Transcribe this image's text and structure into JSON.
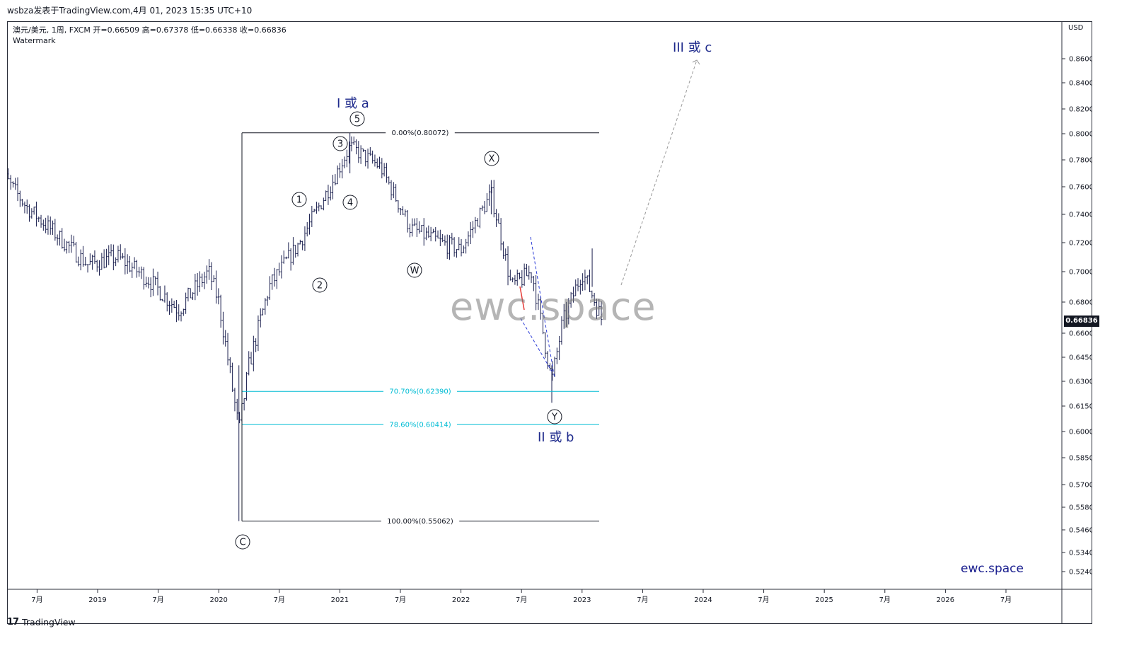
{
  "header": {
    "caption": "wsbza发表于TradingView.com,4月 01, 2023 15:35 UTC+10",
    "symbol_line": "澳元/美元, 1周, FXCM 开=0.66509 高=0.67378 低=0.66338 收=0.66836",
    "watermark": "Watermark"
  },
  "price_axis": {
    "currency": "USD",
    "ticks": [
      "0.86000",
      "0.84000",
      "0.82000",
      "0.80000",
      "0.78000",
      "0.76000",
      "0.74000",
      "0.72000",
      "0.70000",
      "0.68000",
      "0.66000",
      "0.64500",
      "0.63000",
      "0.61500",
      "0.60000",
      "0.58500",
      "0.57000",
      "0.55800",
      "0.54600",
      "0.53400",
      "0.52400"
    ],
    "last_price": "0.66836"
  },
  "time_axis": {
    "ticks": [
      "7月",
      "2019",
      "7月",
      "2020",
      "7月",
      "2021",
      "7月",
      "2022",
      "7月",
      "2023",
      "7月",
      "2024",
      "7月",
      "2025",
      "7月",
      "2026",
      "7月"
    ]
  },
  "fib_levels": [
    {
      "label": "0.00%(0.80072)",
      "color": "#131722"
    },
    {
      "label": "70.70%(0.62390)",
      "color": "#00bcd4"
    },
    {
      "label": "78.60%(0.60414)",
      "color": "#00bcd4"
    },
    {
      "label": "100.00%(0.55062)",
      "color": "#131722"
    }
  ],
  "wave_labels": {
    "wave_1a": "I 或 a",
    "wave_2b": "II 或 b",
    "wave_3c": "III 或 c",
    "circles": [
      "1",
      "2",
      "3",
      "4",
      "5",
      "W",
      "X",
      "Y",
      "C"
    ]
  },
  "branding": {
    "big_watermark": "ewc.space",
    "corner": "ewc.space",
    "footer": "TradingView",
    "footer_logo": "17"
  },
  "colors": {
    "bars": "#1a1f4e",
    "fib_main": "#131722",
    "fib_cyan": "#00bcd4",
    "wave_text": "#1e2a8c",
    "projection": "#999999",
    "channel": "#2b3bd6",
    "highlight": "#e53935"
  },
  "chart_data": {
    "type": "ohlc",
    "symbol": "澳元/美元",
    "interval": "1周",
    "ylim": [
      0.515,
      0.875
    ],
    "x": [
      "2018-03",
      "2018-06",
      "2018-09",
      "2018-12",
      "2019-03",
      "2019-06",
      "2019-09",
      "2019-12",
      "2020-01",
      "2020-03",
      "2020-04",
      "2020-06",
      "2020-09",
      "2020-12",
      "2021-02",
      "2021-05",
      "2021-08",
      "2021-11",
      "2022-01",
      "2022-04",
      "2022-06",
      "2022-08",
      "2022-10",
      "2022-11",
      "2023-01",
      "2023-02",
      "2023-03"
    ],
    "close": [
      0.775,
      0.745,
      0.725,
      0.705,
      0.71,
      0.695,
      0.675,
      0.7,
      0.68,
      0.6,
      0.64,
      0.69,
      0.72,
      0.76,
      0.79,
      0.775,
      0.73,
      0.72,
      0.715,
      0.755,
      0.69,
      0.7,
      0.63,
      0.665,
      0.7,
      0.685,
      0.668
    ],
    "fib_retracement": [
      {
        "level": "0.00%",
        "price": 0.80072
      },
      {
        "level": "70.70%",
        "price": 0.6239
      },
      {
        "level": "78.60%",
        "price": 0.60414
      },
      {
        "level": "100.00%",
        "price": 0.55062
      }
    ],
    "last": {
      "open": 0.66509,
      "high": 0.67378,
      "low": 0.66338,
      "close": 0.66836
    }
  }
}
